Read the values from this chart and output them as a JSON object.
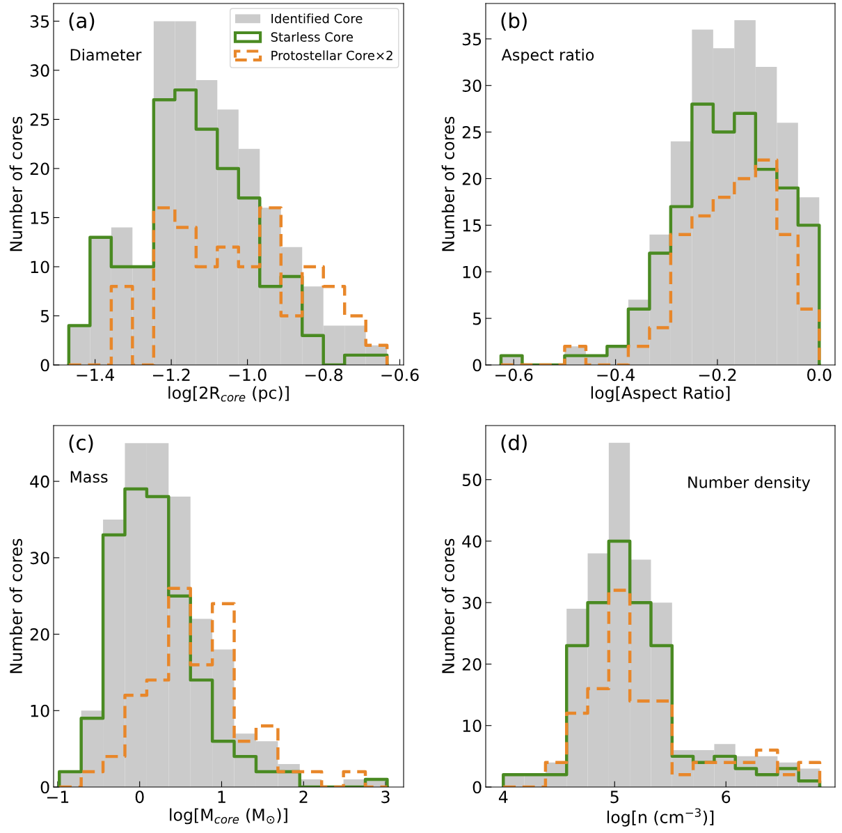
{
  "chart_data": [
    {
      "type": "histogram",
      "xlabel": "log[2R$_{core}$ (pc)]",
      "ylabel": "Number of cores",
      "annotations": [
        "(a)",
        "Diameter"
      ],
      "legend": "top right",
      "bins": [
        -1.469,
        -1.4133,
        -1.3576,
        -1.3019,
        -1.2462,
        -1.1905,
        -1.1348,
        -1.0791,
        -1.0234,
        -0.9677,
        -0.912,
        -0.8563,
        -0.8006,
        -0.7449,
        -0.6892,
        -0.6335
      ],
      "xlim": [
        -1.509,
        -0.59
      ],
      "xticks": [
        {
          "value": -1.4,
          "label": "−1.4"
        },
        {
          "value": -1.2,
          "label": "−1.2"
        },
        {
          "value": -1.0,
          "label": "−1.0"
        },
        {
          "value": -0.8,
          "label": "−0.8"
        },
        {
          "value": -0.6,
          "label": "−0.6"
        }
      ],
      "ylim": [
        0,
        36.8
      ],
      "yticks": [
        0,
        5,
        10,
        15,
        20,
        25,
        30,
        35
      ],
      "series": [
        {
          "name": "Identified Core",
          "type": "histogram",
          "color": "#cbcbcb",
          "values": [
            4,
            13,
            14,
            10,
            35,
            35,
            29,
            26,
            22,
            16,
            12,
            8,
            4,
            4,
            2
          ]
        },
        {
          "name": "Starless Core",
          "type": "step",
          "line_style": "solid",
          "color": "#4a8a22",
          "x": [
            -1.469,
            -1.469,
            -1.4133,
            -1.3576,
            -1.3019,
            -1.2462,
            -1.1905,
            -1.1348,
            -1.0791,
            -1.0234,
            -0.9677,
            -0.912,
            -0.8563,
            -0.8006,
            -0.7449,
            -0.6892,
            -0.6335
          ],
          "values": [
            0,
            4,
            13,
            10,
            10,
            27,
            28,
            24,
            20,
            17,
            8,
            9,
            3,
            0,
            1,
            1,
            0
          ]
        },
        {
          "name": "Protostellar Core×2",
          "type": "step",
          "line_style": "dashed",
          "color": "#e8872a",
          "x": [
            -1.469,
            -1.469,
            -1.4133,
            -1.3576,
            -1.3019,
            -1.2462,
            -1.1905,
            -1.1348,
            -1.0791,
            -1.0234,
            -0.9677,
            -0.912,
            -0.8563,
            -0.8006,
            -0.7449,
            -0.6892,
            -0.6335
          ],
          "values": [
            0,
            0,
            0,
            8,
            0,
            16,
            14,
            10,
            12,
            10,
            16,
            5,
            10,
            8,
            5,
            2,
            0
          ]
        }
      ]
    },
    {
      "type": "histogram",
      "xlabel": "log[Aspect Ratio]",
      "ylabel": "Number of cores",
      "annotations": [
        "(b)",
        "Aspect ratio"
      ],
      "bins": [
        -0.625,
        -0.5833,
        -0.5417,
        -0.5,
        -0.4583,
        -0.4167,
        -0.375,
        -0.3333,
        -0.2917,
        -0.25,
        -0.2083,
        -0.1667,
        -0.125,
        -0.0833,
        -0.0417,
        0.0
      ],
      "xlim": [
        -0.655,
        0.031
      ],
      "xticks": [
        {
          "value": -0.6,
          "label": "−0.6"
        },
        {
          "value": -0.4,
          "label": "−0.4"
        },
        {
          "value": -0.2,
          "label": "−0.2"
        },
        {
          "value": 0.0,
          "label": "0.0"
        }
      ],
      "ylim": [
        0,
        38.8
      ],
      "yticks": [
        0,
        5,
        10,
        15,
        20,
        25,
        30,
        35
      ],
      "series": [
        {
          "type": "histogram",
          "color": "#cbcbcb",
          "values": [
            1,
            0,
            0,
            2,
            1,
            2,
            7,
            14,
            24,
            36,
            34,
            37,
            32,
            26,
            18
          ]
        },
        {
          "type": "step",
          "line_style": "solid",
          "color": "#4a8a22",
          "x": [
            -0.625,
            -0.625,
            -0.5833,
            -0.5417,
            -0.5,
            -0.4583,
            -0.4167,
            -0.375,
            -0.3333,
            -0.2917,
            -0.25,
            -0.2083,
            -0.1667,
            -0.125,
            -0.0833,
            -0.0417,
            0.0
          ],
          "values": [
            0,
            1,
            0,
            0,
            1,
            1,
            2,
            6,
            12,
            17,
            28,
            25,
            27,
            21,
            19,
            15,
            0
          ]
        },
        {
          "type": "step",
          "line_style": "dashed",
          "color": "#e8872a",
          "x": [
            -0.625,
            -0.625,
            -0.5833,
            -0.5417,
            -0.5,
            -0.4583,
            -0.4167,
            -0.375,
            -0.3333,
            -0.2917,
            -0.25,
            -0.2083,
            -0.1667,
            -0.125,
            -0.0833,
            -0.0417,
            0.0
          ],
          "values": [
            0,
            0,
            0,
            0,
            2,
            0,
            0,
            2,
            4,
            14,
            16,
            18,
            20,
            22,
            14,
            6,
            0
          ]
        }
      ]
    },
    {
      "type": "histogram",
      "xlabel": "log[M$_{core}$ (M$_{⊙}$)]",
      "ylabel": "Number of cores",
      "annotations": [
        "(c)",
        "Mass"
      ],
      "bins": [
        -0.98,
        -0.7133,
        -0.4467,
        -0.18,
        0.0867,
        0.3533,
        0.62,
        0.8867,
        1.1533,
        1.42,
        1.6867,
        1.9533,
        2.22,
        2.4867,
        2.7533,
        3.02
      ],
      "xlim": [
        -1.05,
        3.22
      ],
      "xticks": [
        {
          "value": -1,
          "label": "−1"
        },
        0,
        1,
        2,
        3
      ],
      "ylim": [
        0,
        47.3
      ],
      "yticks": [
        0,
        10,
        20,
        30,
        40
      ],
      "series": [
        {
          "type": "histogram",
          "color": "#cbcbcb",
          "values": [
            2,
            10,
            35,
            45,
            45,
            38,
            22,
            18,
            7,
            6,
            3,
            1,
            0,
            1,
            1
          ]
        },
        {
          "type": "step",
          "line_style": "solid",
          "color": "#4a8a22",
          "x": [
            -0.98,
            -0.98,
            -0.7133,
            -0.4467,
            -0.18,
            0.0867,
            0.3533,
            0.62,
            0.8867,
            1.1533,
            1.42,
            1.6867,
            1.9533,
            2.22,
            2.4867,
            2.7533,
            3.02
          ],
          "values": [
            0,
            2,
            9,
            33,
            39,
            38,
            25,
            14,
            6,
            4,
            2,
            2,
            0,
            0,
            0,
            1,
            0
          ]
        },
        {
          "type": "step",
          "line_style": "dashed",
          "color": "#e8872a",
          "x": [
            -0.98,
            -0.98,
            -0.7133,
            -0.4467,
            -0.18,
            0.0867,
            0.3533,
            0.62,
            0.8867,
            1.1533,
            1.42,
            1.6867,
            1.9533,
            2.22,
            2.4867,
            2.7533,
            3.02
          ],
          "values": [
            0,
            0,
            2,
            4,
            12,
            14,
            26,
            16,
            24,
            6,
            8,
            2,
            2,
            0,
            2,
            0,
            0
          ]
        }
      ]
    },
    {
      "type": "histogram",
      "xlabel": "log[n (cm$^{−3}$)]",
      "ylabel": "Number of cores",
      "annotations": [
        "(d)",
        "Number density"
      ],
      "bins": [
        4.0,
        4.1895,
        4.379,
        4.5685,
        4.758,
        4.9475,
        5.137,
        5.3265,
        5.516,
        5.7055,
        5.895,
        6.0845,
        6.274,
        6.4635,
        6.653,
        6.8425
      ],
      "xlim": [
        3.842,
        6.98
      ],
      "xticks": [
        4,
        5,
        6
      ],
      "ylim": [
        0,
        58.8
      ],
      "yticks": [
        0,
        10,
        20,
        30,
        40,
        50
      ],
      "series": [
        {
          "type": "histogram",
          "color": "#cbcbcb",
          "values": [
            2,
            2,
            4,
            29,
            38,
            56,
            37,
            30,
            6,
            6,
            7,
            5,
            5,
            4,
            3
          ]
        },
        {
          "type": "step",
          "line_style": "solid",
          "color": "#4a8a22",
          "x": [
            4.0,
            4.0,
            4.1895,
            4.379,
            4.5685,
            4.758,
            4.9475,
            5.137,
            5.3265,
            5.516,
            5.7055,
            5.895,
            6.0845,
            6.274,
            6.4635,
            6.653,
            6.8425
          ],
          "values": [
            0,
            2,
            2,
            2,
            23,
            30,
            40,
            30,
            23,
            5,
            4,
            5,
            3,
            2,
            3,
            1,
            0
          ]
        },
        {
          "type": "step",
          "line_style": "dashed",
          "color": "#e8872a",
          "x": [
            4.0,
            4.0,
            4.1895,
            4.379,
            4.5685,
            4.758,
            4.9475,
            5.137,
            5.3265,
            5.516,
            5.7055,
            5.895,
            6.0845,
            6.274,
            6.4635,
            6.653,
            6.8425
          ],
          "values": [
            0,
            0,
            0,
            4,
            12,
            16,
            32,
            14,
            14,
            2,
            4,
            4,
            4,
            6,
            2,
            4,
            0
          ]
        }
      ]
    }
  ]
}
